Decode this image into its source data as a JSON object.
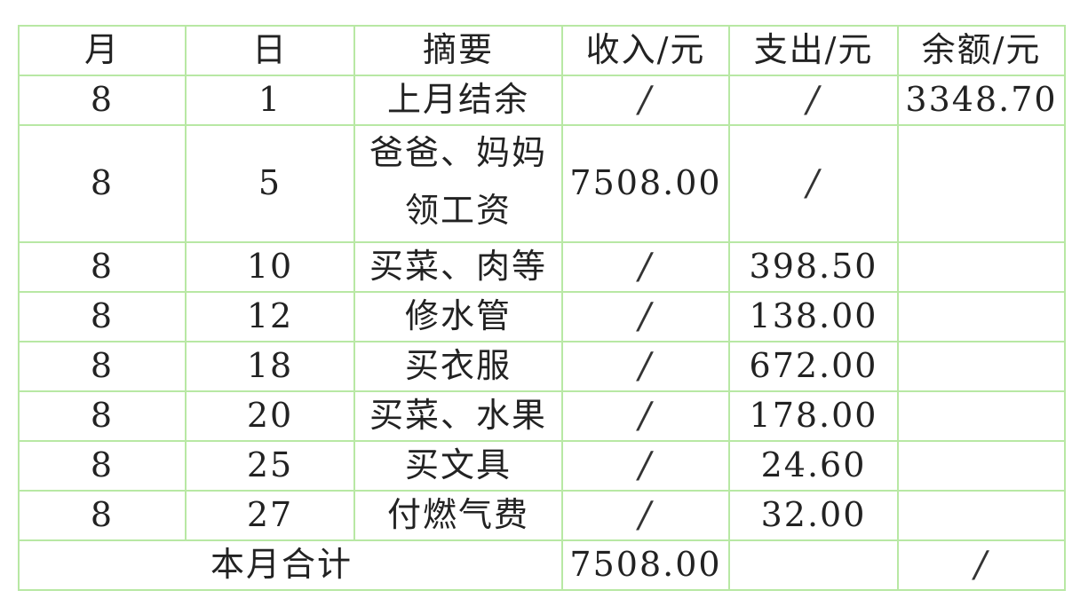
{
  "headers": [
    "月",
    "日",
    "摘要",
    "收入/元",
    "支出/元",
    "余额/元"
  ],
  "rows": [
    {
      "month": "8",
      "day": "1",
      "desc": "上月结余",
      "income": "/",
      "expense": "/",
      "balance": "3348.70"
    },
    {
      "month": "8",
      "day": "5",
      "desc": "爸爸、妈妈领工资",
      "desc_line1": "爸爸、妈妈",
      "desc_line2": "领工资",
      "income": "7508.00",
      "expense": "/",
      "balance": ""
    },
    {
      "month": "8",
      "day": "10",
      "desc": "买菜、肉等",
      "income": "/",
      "expense": "398.50",
      "balance": ""
    },
    {
      "month": "8",
      "day": "12",
      "desc": "修水管",
      "income": "/",
      "expense": "138.00",
      "balance": ""
    },
    {
      "month": "8",
      "day": "18",
      "desc": "买衣服",
      "income": "/",
      "expense": "672.00",
      "balance": ""
    },
    {
      "month": "8",
      "day": "20",
      "desc": "买菜、水果",
      "income": "/",
      "expense": "178.00",
      "balance": ""
    },
    {
      "month": "8",
      "day": "25",
      "desc": "买文具",
      "income": "/",
      "expense": "24.60",
      "balance": ""
    },
    {
      "month": "8",
      "day": "27",
      "desc": "付燃气费",
      "income": "/",
      "expense": "32.00",
      "balance": ""
    }
  ],
  "total": {
    "label": "本月合计",
    "income": "7508.00",
    "expense": "",
    "balance": "/"
  },
  "colors": {
    "grid": "#b8e8a4",
    "text": "#222222"
  }
}
